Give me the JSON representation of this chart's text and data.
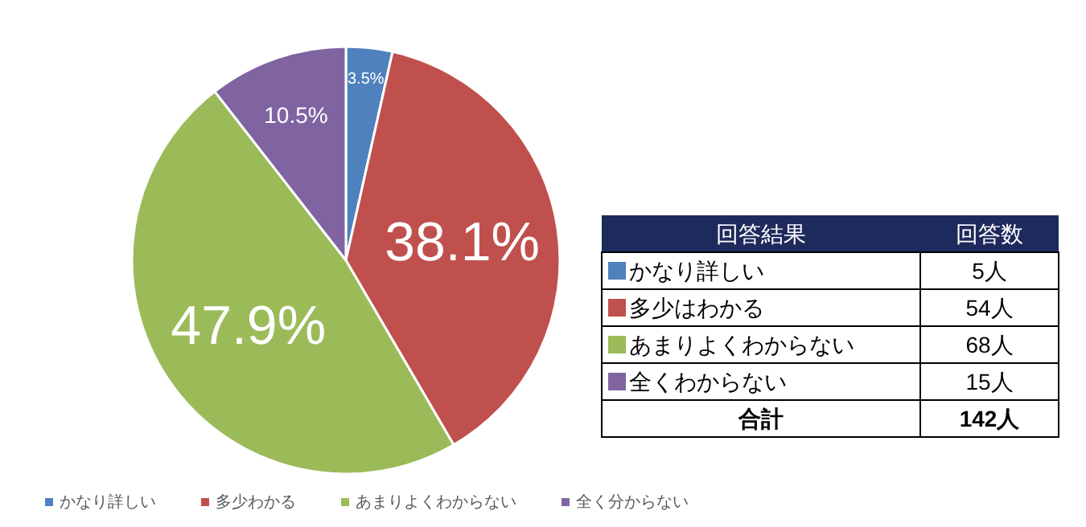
{
  "chart_data": [
    {
      "type": "pie",
      "categories": [
        "かなり詳しい",
        "多少わかる",
        "あまりよくわからない",
        "全く分からない"
      ],
      "values": [
        3.5,
        38.1,
        47.9,
        10.5
      ],
      "colors": [
        "#4f81bd",
        "#c0504d",
        "#9bbb59",
        "#8064a2"
      ],
      "value_labels": [
        "3.5%",
        "38.1%",
        "47.9%",
        "10.5%"
      ],
      "legend": "bottom"
    },
    {
      "type": "other",
      "annotations": [
        "回答結果",
        "回答数"
      ],
      "categories": [
        "かなり詳しい",
        "多少はわかる",
        "あまりよくわからない",
        "全くわからない",
        "合計"
      ],
      "colors": [
        "#4f81bd",
        "#c0504d",
        "#9bbb59",
        "#8064a2",
        null
      ],
      "values": [
        5,
        54,
        68,
        15,
        142
      ],
      "value_labels": [
        "5人",
        "54人",
        "68人",
        "15人",
        "142人"
      ]
    }
  ]
}
